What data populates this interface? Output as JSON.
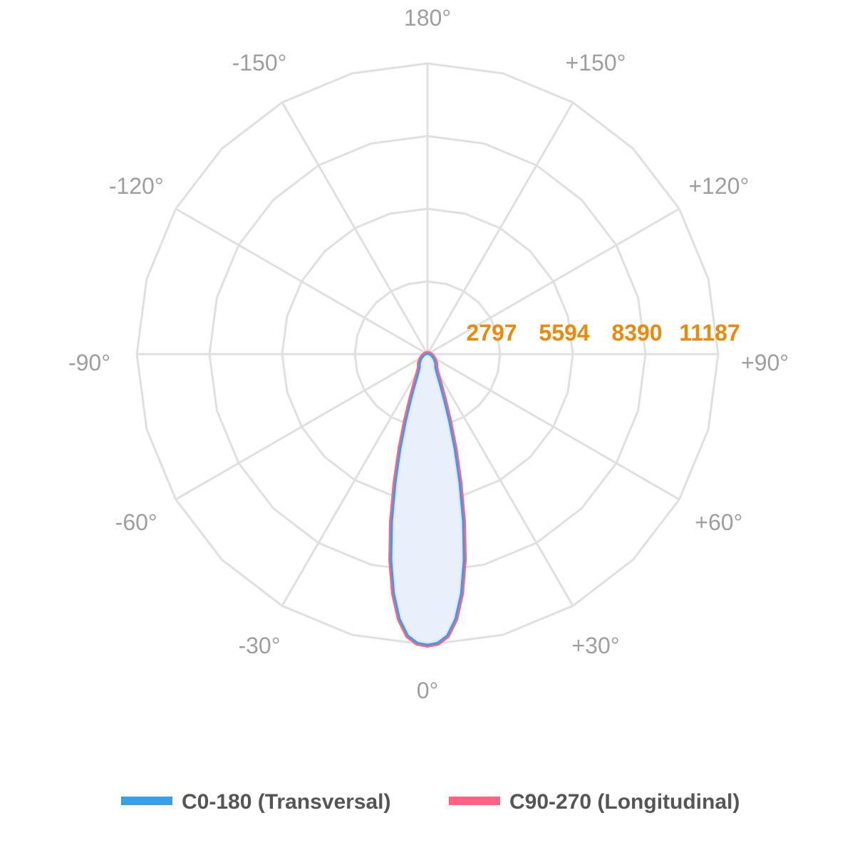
{
  "chart_data": {
    "type": "polar",
    "radial_max": 11187,
    "radial_ticks": [
      2797,
      5594,
      8390,
      11187
    ],
    "radial_tick_labels": [
      "2797",
      "5594",
      "8390",
      "11187"
    ],
    "angle_labels": [
      {
        "angle": 180,
        "text": "180°"
      },
      {
        "angle": 150,
        "text": "+150°"
      },
      {
        "angle": 120,
        "text": "+120°"
      },
      {
        "angle": 90,
        "text": "+90°"
      },
      {
        "angle": 60,
        "text": "+60°"
      },
      {
        "angle": 30,
        "text": "+30°"
      },
      {
        "angle": 0,
        "text": "0°"
      },
      {
        "angle": -30,
        "text": "-30°"
      },
      {
        "angle": -60,
        "text": "-60°"
      },
      {
        "angle": -90,
        "text": "-90°"
      },
      {
        "angle": -120,
        "text": "-120°"
      },
      {
        "angle": -150,
        "text": "-150°"
      }
    ],
    "grid": true,
    "legend_placement": "bottom",
    "series": [
      {
        "name": "C0-180 (Transversal)",
        "color": "#3b9fe6",
        "fill": "#e8f1fb",
        "points": [
          [
            0,
            11187
          ],
          [
            2,
            11120
          ],
          [
            4,
            10860
          ],
          [
            6,
            10250
          ],
          [
            8,
            9300
          ],
          [
            10,
            8050
          ],
          [
            12,
            6600
          ],
          [
            14,
            5100
          ],
          [
            16,
            3800
          ],
          [
            18,
            2700
          ],
          [
            20,
            1870
          ],
          [
            22,
            1330
          ],
          [
            25,
            890
          ],
          [
            30,
            610
          ],
          [
            35,
            520
          ],
          [
            40,
            470
          ],
          [
            50,
            330
          ],
          [
            60,
            220
          ],
          [
            70,
            140
          ],
          [
            80,
            90
          ],
          [
            90,
            60
          ],
          [
            100,
            40
          ],
          [
            120,
            20
          ],
          [
            150,
            10
          ],
          [
            180,
            5
          ]
        ]
      },
      {
        "name": "C90-270 (Longitudinal)",
        "color": "#ff6384",
        "fill": "none",
        "points": [
          [
            0,
            11187
          ],
          [
            2,
            11120
          ],
          [
            4,
            10860
          ],
          [
            6,
            10250
          ],
          [
            8,
            9300
          ],
          [
            10,
            8050
          ],
          [
            12,
            6600
          ],
          [
            14,
            5100
          ],
          [
            16,
            3800
          ],
          [
            18,
            2700
          ],
          [
            20,
            1870
          ],
          [
            22,
            1330
          ],
          [
            25,
            890
          ],
          [
            30,
            610
          ],
          [
            35,
            520
          ],
          [
            40,
            470
          ],
          [
            50,
            330
          ],
          [
            60,
            220
          ],
          [
            70,
            140
          ],
          [
            80,
            90
          ],
          [
            90,
            60
          ],
          [
            100,
            40
          ],
          [
            120,
            20
          ],
          [
            150,
            10
          ],
          [
            180,
            5
          ]
        ]
      }
    ]
  }
}
